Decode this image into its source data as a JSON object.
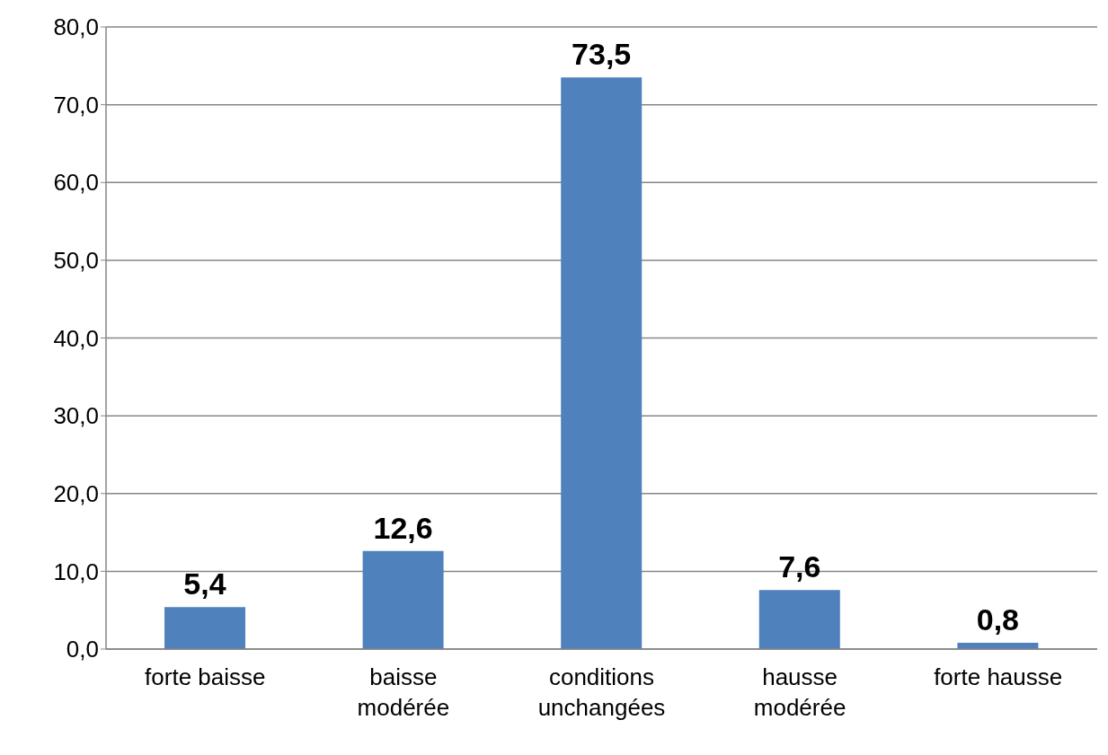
{
  "chart_data": {
    "type": "bar",
    "categories": [
      "forte baisse",
      "baisse modérée",
      "conditions unchangées",
      "hausse modérée",
      "forte hausse"
    ],
    "values": [
      5.4,
      12.6,
      73.5,
      7.6,
      0.8
    ],
    "value_labels": [
      "5,4",
      "12,6",
      "73,5",
      "7,6",
      "0,8"
    ],
    "color": "#4f81bd",
    "ylim": [
      0,
      80
    ],
    "yticks": [
      {
        "value": 0,
        "label": "0,0"
      },
      {
        "value": 10,
        "label": "10,0"
      },
      {
        "value": 20,
        "label": "20,0"
      },
      {
        "value": 30,
        "label": "30,0"
      },
      {
        "value": 40,
        "label": "40,0"
      },
      {
        "value": 50,
        "label": "50,0"
      },
      {
        "value": 60,
        "label": "60,0"
      },
      {
        "value": 70,
        "label": "70,0"
      },
      {
        "value": 80,
        "label": "80,0"
      }
    ],
    "grid": "y",
    "legend": false
  }
}
